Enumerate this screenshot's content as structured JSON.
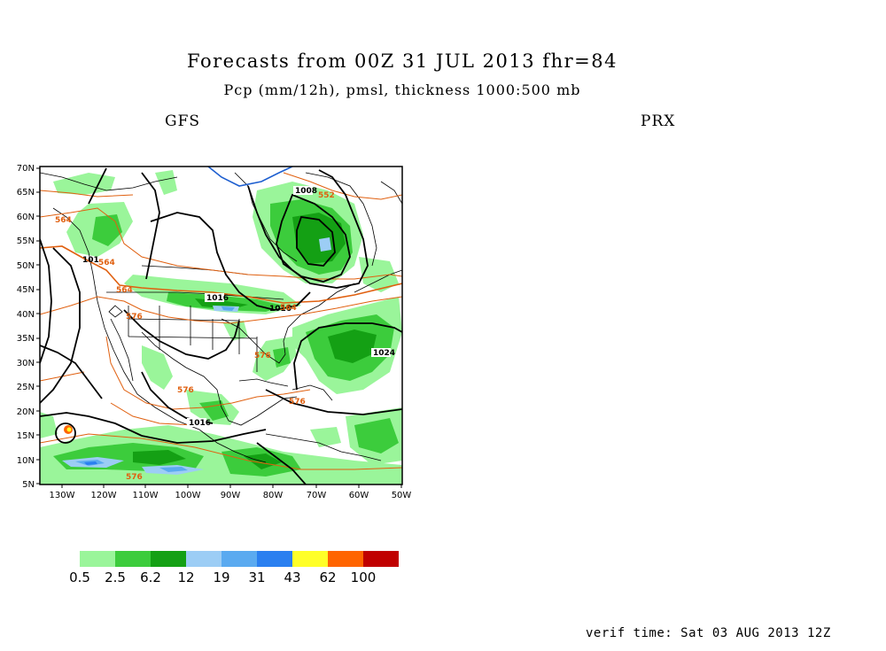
{
  "header": {
    "title": "Forecasts from 00Z 31 JUL 2013   fhr=84",
    "subtitle": "Pcp (mm/12h), pmsl, thickness 1000:500 mb",
    "model_left": "GFS",
    "model_right": "PRX"
  },
  "map": {
    "lat_labels": [
      "70N",
      "65N",
      "60N",
      "55N",
      "50N",
      "45N",
      "40N",
      "35N",
      "30N",
      "25N",
      "20N",
      "15N",
      "10N",
      "5N"
    ],
    "lon_labels": [
      "130W",
      "120W",
      "110W",
      "100W",
      "90W",
      "80W",
      "70W",
      "60W",
      "50W"
    ],
    "pressure_labels": [
      "1008",
      "1016",
      "1016",
      "1024",
      "1016",
      "101"
    ],
    "thickness_labels": [
      "564",
      "564",
      "564",
      "576",
      "552",
      "576",
      "576",
      "564",
      "576",
      "576"
    ],
    "colors": {
      "pressure_contour": "#000000",
      "thickness_contour": "#e06010",
      "thickness_cold": "#1e5fd0",
      "borders": "#000000"
    }
  },
  "legend": {
    "colors": [
      "#9af59a",
      "#3ccc3c",
      "#14a014",
      "#9ccdf5",
      "#5aaaf0",
      "#2a7ff0",
      "#ffff28",
      "#ff6400",
      "#c00000"
    ],
    "labels": [
      "0.5",
      "2.5",
      "6.2",
      "12",
      "19",
      "31",
      "43",
      "62",
      "100"
    ]
  },
  "footer": {
    "verif_time": "verif time: Sat 03 AUG 2013 12Z"
  }
}
